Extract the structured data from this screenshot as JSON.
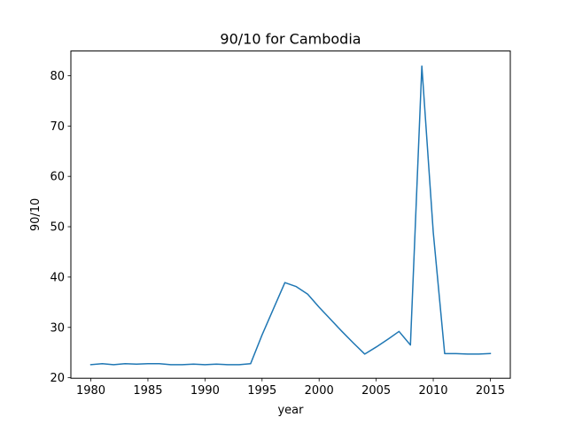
{
  "chart_data": {
    "type": "line",
    "title": "90/10 for Cambodia",
    "xlabel": "year",
    "ylabel": "90/10",
    "xlim": [
      1978.25,
      2016.75
    ],
    "ylim": [
      19.9,
      84.9
    ],
    "xticks": [
      1980,
      1985,
      1990,
      1995,
      2000,
      2005,
      2010,
      2015
    ],
    "yticks": [
      20,
      30,
      40,
      50,
      60,
      70,
      80
    ],
    "grid": false,
    "series": [
      {
        "color": "#1f77b4",
        "x": [
          1980,
          1981,
          1982,
          1983,
          1984,
          1985,
          1986,
          1987,
          1988,
          1989,
          1990,
          1991,
          1992,
          1993,
          1994,
          1995,
          1996,
          1997,
          1998,
          1999,
          2000,
          2001,
          2002,
          2003,
          2004,
          2005,
          2006,
          2007,
          2008,
          2009,
          2010,
          2011,
          2012,
          2013,
          2014,
          2015
        ],
        "values": [
          22.6,
          22.8,
          22.6,
          22.8,
          22.7,
          22.8,
          22.8,
          22.6,
          22.6,
          22.7,
          22.6,
          22.7,
          22.6,
          22.6,
          22.8,
          28.5,
          33.7,
          38.9,
          38.1,
          36.6,
          34.0,
          31.6,
          29.2,
          26.9,
          24.7,
          26.1,
          27.6,
          29.2,
          26.5,
          81.9,
          48.9,
          24.8,
          24.8,
          24.7,
          24.7,
          24.8
        ]
      }
    ]
  }
}
